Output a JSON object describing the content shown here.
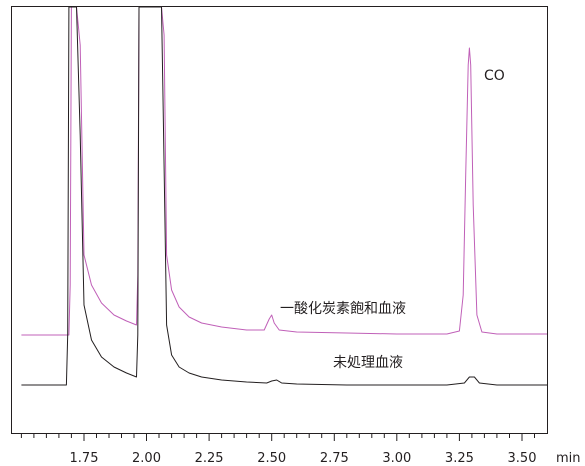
{
  "chart_data": {
    "type": "line",
    "title": "",
    "xlabel": "",
    "ylabel": "",
    "x_unit": "min",
    "xlim": [
      1.4625,
      3.6
    ],
    "x_ticks": [
      1.75,
      2.0,
      2.25,
      2.5,
      2.75,
      3.0,
      3.25,
      3.5
    ],
    "x_tick_labels": [
      "1.75",
      "2.00",
      "2.25",
      "2.50",
      "2.75",
      "3.00",
      "3.25",
      "3.50"
    ],
    "x_minor_step": 0.05,
    "grid": false,
    "series": [
      {
        "name": "一酸化炭素飽和血液",
        "color": "#c060b8",
        "baseline": 0.0,
        "x": [
          1.5,
          1.69,
          1.695,
          1.7,
          1.72,
          1.735,
          1.75,
          1.78,
          1.82,
          1.87,
          1.92,
          1.96,
          1.965,
          1.97,
          1.98,
          2.06,
          2.07,
          2.08,
          2.1,
          2.13,
          2.17,
          2.22,
          2.3,
          2.4,
          2.47,
          2.49,
          2.5,
          2.51,
          2.53,
          2.6,
          2.8,
          3.0,
          3.2,
          3.25,
          3.265,
          3.275,
          3.285,
          3.29,
          3.295,
          3.305,
          3.32,
          3.34,
          3.4,
          3.6
        ],
        "y": [
          0,
          0,
          50,
          600,
          600,
          290,
          80,
          50,
          32,
          20,
          14,
          10,
          60,
          600,
          600,
          600,
          300,
          80,
          45,
          28,
          18,
          12,
          8,
          5,
          5,
          16,
          20,
          12,
          5,
          3,
          2,
          1,
          1,
          4,
          40,
          160,
          270,
          287,
          270,
          130,
          20,
          3,
          1,
          1
        ]
      },
      {
        "name": "未処理血液",
        "color": "#231f20",
        "baseline": -50.0,
        "x": [
          1.5,
          1.68,
          1.685,
          1.69,
          1.72,
          1.735,
          1.75,
          1.78,
          1.82,
          1.87,
          1.92,
          1.96,
          1.965,
          1.97,
          2.06,
          2.065,
          2.08,
          2.1,
          2.13,
          2.17,
          2.22,
          2.3,
          2.4,
          2.48,
          2.5,
          2.52,
          2.54,
          2.6,
          2.8,
          3.0,
          3.2,
          3.27,
          3.29,
          3.31,
          3.33,
          3.4,
          3.6
        ],
        "y": [
          0,
          0,
          50,
          600,
          600,
          250,
          80,
          45,
          28,
          18,
          12,
          8,
          50,
          600,
          600,
          300,
          60,
          30,
          18,
          12,
          8,
          5,
          3,
          2,
          4,
          5,
          2,
          1,
          0,
          0,
          0,
          2,
          8,
          8,
          2,
          0,
          0
        ]
      }
    ],
    "annotations": [
      {
        "text": "CO"
      }
    ]
  }
}
